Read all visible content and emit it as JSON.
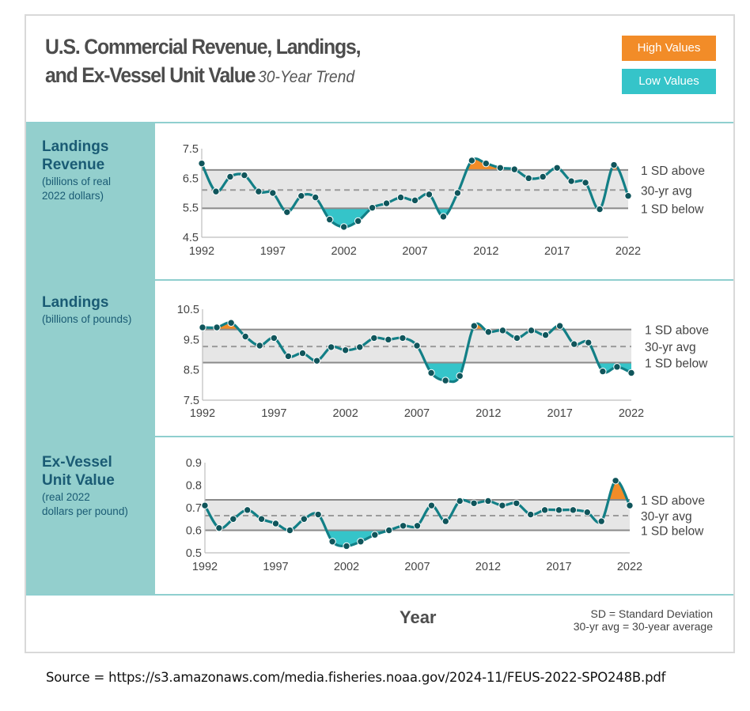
{
  "title_line1": "U.S. Commercial Revenue, Landings,",
  "title_line2": "and Ex-Vessel Unit Value",
  "subtitle": "30-Year Trend",
  "legend": {
    "high_label": "High Values",
    "low_label": "Low Values"
  },
  "colors": {
    "line": "#127f86",
    "high": "#f28c28",
    "low": "#35c4c9",
    "band": "#e6e6e6",
    "side": "#93cfcd"
  },
  "x_axis_title": "Year",
  "notes": {
    "sd": "SD = Standard Deviation",
    "avg": "30-yr avg = 30-year average"
  },
  "source": "Source = https://s3.amazonaws.com/media.fisheries.noaa.gov/2024-11/FEUS-2022-SPO248B.pdf",
  "panels": [
    {
      "name_lines": [
        "Landings",
        "Revenue"
      ],
      "unit_lines": [
        "(billions of real",
        "2022 dollars)"
      ]
    },
    {
      "name_lines": [
        "Landings"
      ],
      "unit_lines": [
        "(billions of pounds)"
      ]
    },
    {
      "name_lines": [
        "Ex-Vessel",
        "Unit Value"
      ],
      "unit_lines": [
        "(real 2022",
        "dollars per pound)"
      ]
    }
  ],
  "chart_data": [
    {
      "type": "line",
      "title": "Landings Revenue",
      "ylabel": "billions of real 2022 dollars",
      "ylim": [
        4.5,
        7.5
      ],
      "yticks": [
        "7.5",
        "6.5",
        "5.5",
        "4.5"
      ],
      "xticks": [
        "1992",
        "1997",
        "2002",
        "2007",
        "2012",
        "2017",
        "2022"
      ],
      "x": [
        1992,
        1993,
        1994,
        1995,
        1996,
        1997,
        1998,
        1999,
        2000,
        2001,
        2002,
        2003,
        2004,
        2005,
        2006,
        2007,
        2008,
        2009,
        2010,
        2011,
        2012,
        2013,
        2014,
        2015,
        2016,
        2017,
        2018,
        2019,
        2020,
        2021,
        2022
      ],
      "values": [
        7.0,
        6.05,
        6.55,
        6.6,
        6.05,
        6.0,
        5.35,
        5.9,
        5.85,
        5.1,
        4.85,
        5.05,
        5.5,
        5.65,
        5.85,
        5.75,
        5.95,
        5.2,
        6.0,
        7.1,
        7.0,
        6.85,
        6.8,
        6.5,
        6.55,
        6.85,
        6.4,
        6.35,
        5.45,
        6.95,
        5.9
      ],
      "avg": 6.1,
      "sd_above": 6.78,
      "sd_below": 5.48,
      "ref_labels": [
        "1 SD above",
        "30-yr avg",
        "1 SD below"
      ]
    },
    {
      "type": "line",
      "title": "Landings",
      "ylabel": "billions of pounds",
      "ylim": [
        7.5,
        10.5
      ],
      "yticks": [
        "10.5",
        "9.5",
        "8.5",
        "7.5"
      ],
      "xticks": [
        "1992",
        "1997",
        "2002",
        "2007",
        "2012",
        "2017",
        "2022"
      ],
      "x": [
        1992,
        1993,
        1994,
        1995,
        1996,
        1997,
        1998,
        1999,
        2000,
        2001,
        2002,
        2003,
        2004,
        2005,
        2006,
        2007,
        2008,
        2009,
        2010,
        2011,
        2012,
        2013,
        2014,
        2015,
        2016,
        2017,
        2018,
        2019,
        2020,
        2021,
        2022
      ],
      "values": [
        9.9,
        9.9,
        10.05,
        9.6,
        9.3,
        9.55,
        8.95,
        9.05,
        8.8,
        9.25,
        9.15,
        9.25,
        9.55,
        9.5,
        9.55,
        9.3,
        8.4,
        8.15,
        8.3,
        9.95,
        9.75,
        9.8,
        9.55,
        9.8,
        9.65,
        9.95,
        9.35,
        9.4,
        8.45,
        8.6,
        8.4
      ],
      "avg": 9.27,
      "sd_above": 9.83,
      "sd_below": 8.74,
      "ref_labels": [
        "1 SD above",
        "30-yr avg",
        "1 SD below"
      ]
    },
    {
      "type": "line",
      "title": "Ex-Vessel Unit Value",
      "ylabel": "real 2022 dollars per pound",
      "ylim": [
        0.5,
        0.9
      ],
      "yticks": [
        "0.9",
        "0.8",
        "0.7",
        "0.6",
        "0.5"
      ],
      "xticks": [
        "1992",
        "1997",
        "2002",
        "2007",
        "2012",
        "2017",
        "2022"
      ],
      "x": [
        1992,
        1993,
        1994,
        1995,
        1996,
        1997,
        1998,
        1999,
        2000,
        2001,
        2002,
        2003,
        2004,
        2005,
        2006,
        2007,
        2008,
        2009,
        2010,
        2011,
        2012,
        2013,
        2014,
        2015,
        2016,
        2017,
        2018,
        2019,
        2020,
        2021,
        2022
      ],
      "values": [
        0.71,
        0.61,
        0.65,
        0.69,
        0.65,
        0.63,
        0.6,
        0.65,
        0.67,
        0.55,
        0.53,
        0.55,
        0.58,
        0.6,
        0.62,
        0.62,
        0.71,
        0.64,
        0.73,
        0.72,
        0.73,
        0.71,
        0.72,
        0.67,
        0.69,
        0.69,
        0.69,
        0.68,
        0.64,
        0.82,
        0.71
      ],
      "avg": 0.665,
      "sd_above": 0.735,
      "sd_below": 0.6,
      "ref_labels": [
        "1 SD above",
        "30-yr avg",
        "1 SD below"
      ]
    }
  ]
}
